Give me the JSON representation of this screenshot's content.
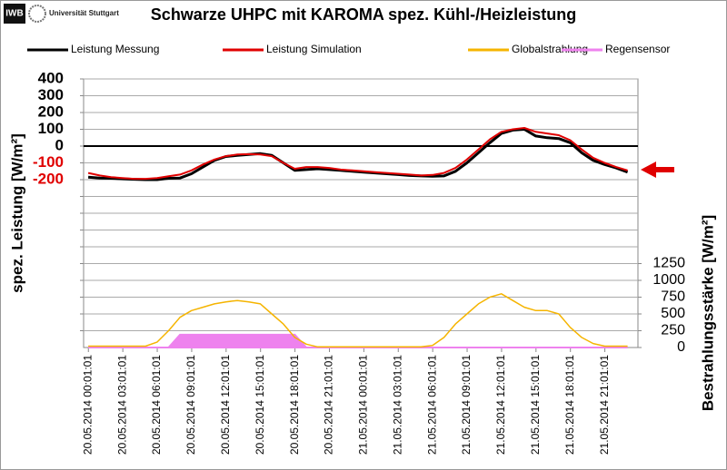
{
  "chart_data": {
    "type": "line",
    "title": "Schwarze UHPC mit KAROMA spez. Kühl-/Heizleistung",
    "logos": [
      "IWB",
      "Universität Stuttgart"
    ],
    "y_label": "spez. Leistung [W/m²]",
    "y2_label": "Bestrahlungsstärke [W/m²]",
    "legend": "top",
    "grid": true,
    "zero_line": true,
    "negative_tick_color": "#e00000",
    "x": [
      0,
      1,
      2,
      3,
      4,
      5,
      6,
      7,
      8,
      9,
      10,
      11,
      12,
      13,
      14,
      15,
      16,
      17,
      18,
      19,
      20,
      21,
      22,
      23,
      24,
      25,
      26,
      27,
      28,
      29,
      30,
      31,
      32,
      33,
      34,
      35,
      36,
      37,
      38,
      39,
      40,
      41,
      42,
      43,
      44,
      45,
      46,
      47
    ],
    "xlim": [
      -0.4,
      47.9
    ],
    "xticks": [
      {
        "value": 0.017,
        "label": "20.05.2014 00:01:01"
      },
      {
        "value": 3.017,
        "label": "20.05.2014 03:01:01"
      },
      {
        "value": 6.017,
        "label": "20.05.2014 06:01:01"
      },
      {
        "value": 9.017,
        "label": "20.05.2014 09:01:01"
      },
      {
        "value": 12.017,
        "label": "20.05.2014 12:01:01"
      },
      {
        "value": 15.017,
        "label": "20.05.2014 15:01:01"
      },
      {
        "value": 18.017,
        "label": "20.05.2014 18:01:01"
      },
      {
        "value": 21.017,
        "label": "20.05.2014 21:01:01"
      },
      {
        "value": 24.017,
        "label": "21.05.2014 00:01:01"
      },
      {
        "value": 27.017,
        "label": "21.05.2014 03:01:01"
      },
      {
        "value": 30.017,
        "label": "21.05.2014 06:01:01"
      },
      {
        "value": 33.017,
        "label": "21.05.2014 09:01:01"
      },
      {
        "value": 36.017,
        "label": "21.05.2014 12:01:01"
      },
      {
        "value": 39.017,
        "label": "21.05.2014 15:01:01"
      },
      {
        "value": 42.017,
        "label": "21.05.2014 18:01:01"
      },
      {
        "value": 45.017,
        "label": "21.05.2014 21:01:01"
      }
    ],
    "ylim": [
      -1200,
      400
    ],
    "yticks": [
      400,
      300,
      200,
      100,
      0,
      -100,
      -200,
      {
        "value": -300,
        "label": null
      },
      {
        "value": -400,
        "label": null
      },
      {
        "value": -500,
        "label": null
      },
      {
        "value": -600,
        "label": null
      },
      {
        "value": -700,
        "label": null
      },
      {
        "value": -800,
        "label": null
      },
      {
        "value": -900,
        "label": null
      },
      {
        "value": -1000,
        "label": null
      },
      {
        "value": -1100,
        "label": null
      }
    ],
    "y2lim": [
      0,
      4000
    ],
    "y2ticks": [
      0,
      250,
      500,
      750,
      1000,
      1250
    ],
    "series": [
      {
        "name": "Leistung Messung",
        "color": "#000000",
        "width": 3,
        "values": [
          -185,
          -190,
          -192,
          -195,
          -198,
          -200,
          -200,
          -192,
          -190,
          -165,
          -125,
          -85,
          -62,
          -55,
          -50,
          -45,
          -55,
          -100,
          -145,
          -140,
          -135,
          -140,
          -145,
          -150,
          -155,
          -160,
          -165,
          -170,
          -175,
          -178,
          -180,
          -178,
          -150,
          -100,
          -40,
          20,
          75,
          95,
          100,
          60,
          50,
          45,
          20,
          -40,
          -85,
          -110,
          -130,
          -155
        ]
      },
      {
        "name": "Leistung Simulation",
        "color": "#e00000",
        "width": 2,
        "values": [
          -160,
          -175,
          -185,
          -190,
          -195,
          -195,
          -190,
          -180,
          -170,
          -145,
          -110,
          -80,
          -60,
          -50,
          -48,
          -50,
          -60,
          -100,
          -135,
          -125,
          -125,
          -130,
          -140,
          -145,
          -150,
          -155,
          -160,
          -165,
          -170,
          -175,
          -172,
          -160,
          -130,
          -80,
          -20,
          40,
          85,
          100,
          108,
          85,
          75,
          65,
          35,
          -20,
          -70,
          -100,
          -125,
          -145
        ]
      },
      {
        "name": "Globalstrahlung",
        "color": "#f5b400",
        "width": 1.5,
        "axis": "y2",
        "values": [
          20,
          20,
          20,
          20,
          20,
          20,
          80,
          250,
          450,
          550,
          600,
          650,
          680,
          700,
          680,
          650,
          500,
          350,
          150,
          50,
          10,
          10,
          10,
          10,
          10,
          10,
          10,
          10,
          10,
          10,
          30,
          150,
          350,
          500,
          650,
          750,
          800,
          700,
          600,
          550,
          550,
          500,
          300,
          150,
          60,
          20,
          20,
          20
        ]
      },
      {
        "name": "Regensensor",
        "color": "#ee82ee",
        "width": 2,
        "axis": "y2",
        "style": "area",
        "values": [
          0,
          0,
          0,
          0,
          0,
          0,
          0,
          0,
          190,
          190,
          190,
          190,
          190,
          190,
          190,
          190,
          190,
          190,
          190,
          0,
          0,
          0,
          0,
          0,
          0,
          0,
          0,
          0,
          0,
          0,
          0,
          0,
          0,
          0,
          0,
          0,
          0,
          0,
          0,
          0,
          0,
          0,
          0,
          0,
          0,
          0,
          0,
          0
        ]
      }
    ]
  }
}
